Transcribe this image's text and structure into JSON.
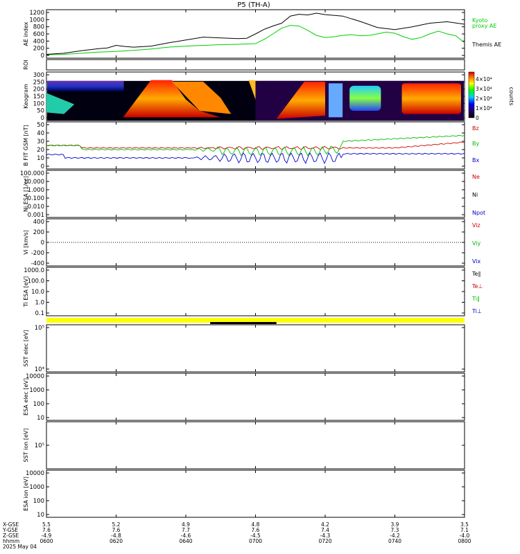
{
  "title": "P5 (TH-A)",
  "colors": {
    "black": "#000000",
    "red": "#cc0000",
    "green": "#00bb00",
    "blue": "#0000cc",
    "yellow": "#ffff00",
    "kyoto": "#00cc00"
  },
  "chart_data": {
    "type": "line",
    "time_axis": {
      "ticks": [
        "0600",
        "0620",
        "0640",
        "0700",
        "0720",
        "0740",
        "0800"
      ],
      "date": "2025 May 04",
      "coord_rows": [
        {
          "label": "X-GSE",
          "values": [
            "5.5",
            "5.2",
            "4.9",
            "4.8",
            "4.2",
            "3.9",
            "3.5"
          ]
        },
        {
          "label": "Y-GSE",
          "values": [
            "7.6",
            "7.6",
            "7.7",
            "7.6",
            "7.4",
            "7.3",
            "7.1"
          ]
        },
        {
          "label": "Z-GSE",
          "values": [
            "-4.9",
            "-4.8",
            "-4.6",
            "-4.5",
            "-4.3",
            "-4.2",
            "-4.0"
          ]
        },
        {
          "label": "hhmm",
          "values": [
            "0600",
            "0620",
            "0640",
            "0700",
            "0720",
            "0740",
            "0800"
          ]
        }
      ]
    },
    "panels": [
      {
        "id": "ae",
        "ylabel": "AE index",
        "yticks": [
          "0",
          "200",
          "400",
          "600",
          "800",
          "1000",
          "1200"
        ],
        "ylim": [
          -100,
          1250
        ],
        "series": [
          {
            "name": "Kyoto proxy AE",
            "color": "#00cc00",
            "points": [
              [
                0,
                20
              ],
              [
                10,
                30
              ],
              [
                20,
                60
              ],
              [
                30,
                90
              ],
              [
                40,
                110
              ],
              [
                50,
                140
              ],
              [
                60,
                180
              ],
              [
                70,
                230
              ],
              [
                80,
                260
              ],
              [
                90,
                280
              ],
              [
                100,
                300
              ],
              [
                110,
                310
              ],
              [
                120,
                330
              ],
              [
                125,
                450
              ],
              [
                130,
                600
              ],
              [
                135,
                760
              ],
              [
                140,
                840
              ],
              [
                145,
                820
              ],
              [
                150,
                700
              ],
              [
                155,
                560
              ],
              [
                160,
                500
              ],
              [
                165,
                520
              ],
              [
                170,
                560
              ],
              [
                175,
                580
              ],
              [
                180,
                550
              ],
              [
                185,
                560
              ],
              [
                190,
                600
              ],
              [
                195,
                650
              ],
              [
                200,
                620
              ],
              [
                205,
                520
              ],
              [
                210,
                450
              ],
              [
                215,
                500
              ],
              [
                220,
                600
              ],
              [
                225,
                680
              ],
              [
                230,
                600
              ],
              [
                235,
                550
              ],
              [
                240,
                350
              ]
            ]
          },
          {
            "name": "Themis AE",
            "color": "#000000",
            "points": [
              [
                0,
                30
              ],
              [
                10,
                60
              ],
              [
                20,
                130
              ],
              [
                25,
                160
              ],
              [
                30,
                190
              ],
              [
                35,
                210
              ],
              [
                40,
                280
              ],
              [
                45,
                250
              ],
              [
                50,
                230
              ],
              [
                60,
                260
              ],
              [
                70,
                350
              ],
              [
                80,
                430
              ],
              [
                90,
                510
              ],
              [
                100,
                490
              ],
              [
                110,
                470
              ],
              [
                115,
                480
              ],
              [
                120,
                600
              ],
              [
                125,
                730
              ],
              [
                130,
                820
              ],
              [
                135,
                900
              ],
              [
                140,
                1100
              ],
              [
                145,
                1150
              ],
              [
                150,
                1130
              ],
              [
                155,
                1180
              ],
              [
                160,
                1140
              ],
              [
                170,
                1100
              ],
              [
                180,
                950
              ],
              [
                190,
                780
              ],
              [
                200,
                720
              ],
              [
                210,
                800
              ],
              [
                220,
                900
              ],
              [
                230,
                940
              ],
              [
                240,
                870
              ]
            ]
          }
        ]
      },
      {
        "id": "roi",
        "ylabel": "ROI",
        "yticks": []
      },
      {
        "id": "keogram",
        "ylabel": "Keogram",
        "yticks": [
          "0",
          "50",
          "100",
          "150",
          "200",
          "250",
          "300"
        ],
        "ylim": [
          0,
          300
        ],
        "colorbar": {
          "label": "counts",
          "ticks": [
            "0",
            "1×10⁴",
            "2×10⁴",
            "3×10⁴",
            "4×10⁴"
          ]
        }
      },
      {
        "id": "bfield",
        "ylabel": "B FIT GSM [nT]",
        "yticks": [
          "0",
          "10",
          "20",
          "30",
          "40",
          "50"
        ],
        "ylim": [
          0,
          50
        ],
        "series": [
          {
            "name": "Bz",
            "color": "#cc0000"
          },
          {
            "name": "By",
            "color": "#00bb00"
          },
          {
            "name": "Bx",
            "color": "#0000cc"
          }
        ]
      },
      {
        "id": "density",
        "ylabel": "Ni ESA [1/cc]",
        "yticks": [
          "0.001",
          "0.010",
          "0.100",
          "1.000",
          "10.000",
          "100.000"
        ],
        "legend": [
          {
            "name": "Ne",
            "color": "#cc0000"
          },
          {
            "name": "Ni",
            "color": "#000000"
          },
          {
            "name": "Npot",
            "color": "#0000cc"
          }
        ]
      },
      {
        "id": "velocity",
        "ylabel": "Vi [km/s]",
        "yticks": [
          "-400",
          "-200",
          "0",
          "200",
          "400"
        ],
        "legend": [
          {
            "name": "Viz",
            "color": "#cc0000"
          },
          {
            "name": "Viy",
            "color": "#00bb00"
          },
          {
            "name": "Vix",
            "color": "#0000cc"
          }
        ]
      },
      {
        "id": "temperature",
        "ylabel": "Ti ESA [eV]",
        "yticks": [
          "0.1",
          "1.0",
          "10.0",
          "100.0",
          "1000.0"
        ],
        "legend": [
          {
            "name": "Te∥",
            "color": "#000000"
          },
          {
            "name": "Te⊥",
            "color": "#cc0000"
          },
          {
            "name": "Ti∥",
            "color": "#00bb00"
          },
          {
            "name": "Ti⊥",
            "color": "#0000cc"
          }
        ]
      },
      {
        "id": "sst-e",
        "ylabel": "SST elec [eV]",
        "yticks": [
          "10⁴",
          "10⁵"
        ]
      },
      {
        "id": "esa-e",
        "ylabel": "ESA elec [eV]",
        "yticks": [
          "10",
          "100",
          "1000",
          "10000"
        ]
      },
      {
        "id": "sst-i",
        "ylabel": "SST ion [eV]",
        "yticks": [
          "10⁵"
        ]
      },
      {
        "id": "esa-i",
        "ylabel": "ESA ion [eV]",
        "yticks": [
          "10",
          "100",
          "1000",
          "10000"
        ]
      }
    ],
    "mode_bar": {
      "color": "#ffff00"
    }
  }
}
